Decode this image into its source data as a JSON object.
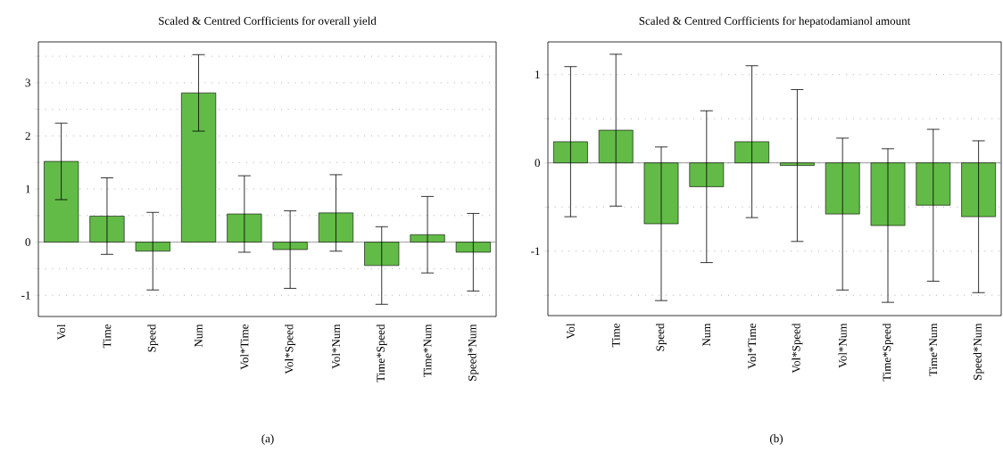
{
  "chart_data": [
    {
      "type": "bar",
      "title": "Scaled & Centred Corfficients for overall yield",
      "annotations": [
        "(a)"
      ],
      "categories": [
        "Vol",
        "Time",
        "Speed",
        "Num",
        "Vol*Time",
        "Vol*Speed",
        "Vol*Num",
        "Time*Speed",
        "Time*Num",
        "Speed*Num"
      ],
      "values": [
        1.52,
        0.49,
        -0.17,
        2.81,
        0.53,
        -0.14,
        0.55,
        -0.44,
        0.14,
        -0.19
      ],
      "errors": [
        0.72,
        0.72,
        0.73,
        0.72,
        0.72,
        0.73,
        0.72,
        0.73,
        0.72,
        0.73
      ],
      "color": "#62bb46",
      "ylim": [
        -1.4,
        3.77
      ],
      "yticks": [
        -1,
        {
          "value": -0.5,
          "label": null
        },
        0,
        {
          "value": 0.5,
          "label": null
        },
        1,
        {
          "value": 1.5,
          "label": null
        },
        2,
        {
          "value": 2.5,
          "label": null
        },
        3,
        {
          "value": 3.5,
          "label": null
        }
      ],
      "grid": "y"
    },
    {
      "type": "bar",
      "title": "Scaled & Centred Corfficients for hepatodamianol amount",
      "annotations": [
        "(b)"
      ],
      "categories": [
        "Vol",
        "Time",
        "Speed",
        "Num",
        "Vol*Time",
        "Vol*Speed",
        "Vol*Num",
        "Time*Speed",
        "Time*Num",
        "Speed*Num"
      ],
      "values": [
        0.24,
        0.37,
        -0.69,
        -0.27,
        0.24,
        -0.03,
        -0.58,
        -0.71,
        -0.48,
        -0.61
      ],
      "errors": [
        0.85,
        0.86,
        0.87,
        0.86,
        0.86,
        0.86,
        0.86,
        0.87,
        0.86,
        0.86
      ],
      "color": "#62bb46",
      "ylim": [
        -1.73,
        1.37
      ],
      "yticks": [
        {
          "value": -1.5,
          "label": null
        },
        -1,
        {
          "value": -0.5,
          "label": null
        },
        0,
        {
          "value": 0.5,
          "label": null
        },
        1
      ],
      "grid": "y"
    }
  ]
}
